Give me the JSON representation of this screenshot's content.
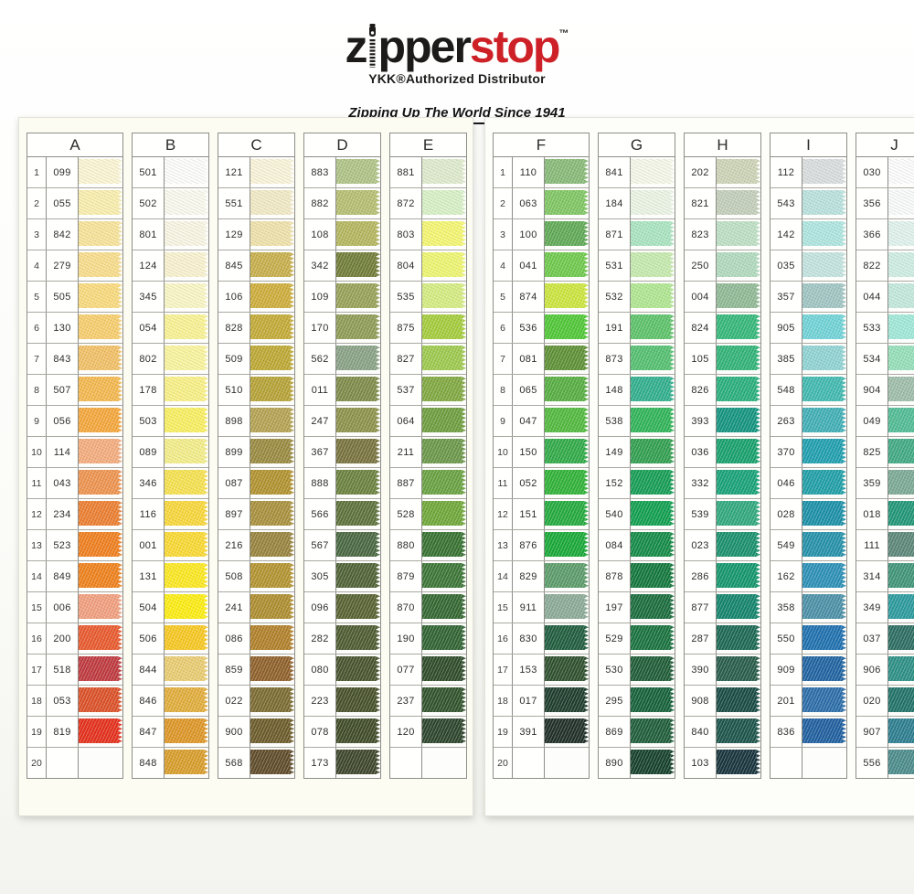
{
  "header": {
    "logo_black_z": "z",
    "logo_black_rest": "pper",
    "logo_red": "stop",
    "trademark": "™",
    "subtitle": "YKK®Authorized Distributor",
    "tagline": "Zipping Up The World Since 1941",
    "logo_red_color": "#cd2127"
  },
  "chart": {
    "row_numbers": [
      "1",
      "2",
      "3",
      "4",
      "5",
      "6",
      "7",
      "8",
      "9",
      "10",
      "11",
      "12",
      "13",
      "14",
      "15",
      "16",
      "17",
      "18",
      "19",
      "20"
    ],
    "columns": [
      {
        "letter": "A",
        "page": 0,
        "has_row_numbers": true,
        "swatches": [
          {
            "code": "099",
            "color": "#FCF6D4"
          },
          {
            "code": "055",
            "color": "#FAEFAE"
          },
          {
            "code": "842",
            "color": "#F8E49A"
          },
          {
            "code": "279",
            "color": "#F9DE8C"
          },
          {
            "code": "505",
            "color": "#FADB7E"
          },
          {
            "code": "130",
            "color": "#F8CF6E"
          },
          {
            "code": "843",
            "color": "#F3C167"
          },
          {
            "code": "507",
            "color": "#F5B94F"
          },
          {
            "code": "056",
            "color": "#F6A83C"
          },
          {
            "code": "114",
            "color": "#F5AD7E"
          },
          {
            "code": "043",
            "color": "#EF944F"
          },
          {
            "code": "234",
            "color": "#ED7F31"
          },
          {
            "code": "523",
            "color": "#F1801F"
          },
          {
            "code": "849",
            "color": "#F0821C"
          },
          {
            "code": "006",
            "color": "#F2A07F"
          },
          {
            "code": "200",
            "color": "#EA5A2E"
          },
          {
            "code": "518",
            "color": "#C03A3F"
          },
          {
            "code": "053",
            "color": "#DD5128"
          },
          {
            "code": "819",
            "color": "#E6301C"
          },
          {
            "code": "",
            "color": ""
          }
        ]
      },
      {
        "letter": "B",
        "page": 0,
        "has_row_numbers": false,
        "swatches": [
          {
            "code": "501",
            "color": "#FDFDFB"
          },
          {
            "code": "502",
            "color": "#FAFAEF"
          },
          {
            "code": "801",
            "color": "#F9F6E4"
          },
          {
            "code": "124",
            "color": "#F9F3D0"
          },
          {
            "code": "345",
            "color": "#FAF7C5"
          },
          {
            "code": "054",
            "color": "#FAF394"
          },
          {
            "code": "802",
            "color": "#FAF59E"
          },
          {
            "code": "178",
            "color": "#FAF187"
          },
          {
            "code": "503",
            "color": "#FAF062"
          },
          {
            "code": "089",
            "color": "#F4EE8A"
          },
          {
            "code": "346",
            "color": "#F7E250"
          },
          {
            "code": "116",
            "color": "#F9D83B"
          },
          {
            "code": "001",
            "color": "#FBDA33"
          },
          {
            "code": "131",
            "color": "#FDE921"
          },
          {
            "code": "504",
            "color": "#FDEE13"
          },
          {
            "code": "506",
            "color": "#F8C922"
          },
          {
            "code": "844",
            "color": "#EACD72"
          },
          {
            "code": "846",
            "color": "#E3AE3C"
          },
          {
            "code": "847",
            "color": "#DF9727"
          },
          {
            "code": "848",
            "color": "#D99E2B"
          }
        ]
      },
      {
        "letter": "C",
        "page": 0,
        "has_row_numbers": false,
        "swatches": [
          {
            "code": "121",
            "color": "#FAF4D9"
          },
          {
            "code": "551",
            "color": "#F2EAC6"
          },
          {
            "code": "129",
            "color": "#F0E2AB"
          },
          {
            "code": "845",
            "color": "#C8B04C"
          },
          {
            "code": "106",
            "color": "#CEAE3B"
          },
          {
            "code": "828",
            "color": "#C4AB37"
          },
          {
            "code": "509",
            "color": "#BEA934"
          },
          {
            "code": "510",
            "color": "#B7A336"
          },
          {
            "code": "898",
            "color": "#B5A352"
          },
          {
            "code": "899",
            "color": "#9A8B40"
          },
          {
            "code": "087",
            "color": "#B2932F"
          },
          {
            "code": "897",
            "color": "#A9913D"
          },
          {
            "code": "216",
            "color": "#99843E"
          },
          {
            "code": "508",
            "color": "#B49430"
          },
          {
            "code": "241",
            "color": "#AF8E2F"
          },
          {
            "code": "086",
            "color": "#B2812A"
          },
          {
            "code": "859",
            "color": "#90612B"
          },
          {
            "code": "022",
            "color": "#7C6C31"
          },
          {
            "code": "900",
            "color": "#6D5C2A"
          },
          {
            "code": "568",
            "color": "#604C2A"
          }
        ]
      },
      {
        "letter": "D",
        "page": 0,
        "has_row_numbers": false,
        "swatches": [
          {
            "code": "883",
            "color": "#B0C487"
          },
          {
            "code": "882",
            "color": "#B6BF71"
          },
          {
            "code": "108",
            "color": "#B5B75F"
          },
          {
            "code": "342",
            "color": "#717D38"
          },
          {
            "code": "109",
            "color": "#99A258"
          },
          {
            "code": "170",
            "color": "#8F9C55"
          },
          {
            "code": "562",
            "color": "#8AA286"
          },
          {
            "code": "011",
            "color": "#7E8C49"
          },
          {
            "code": "247",
            "color": "#8D934B"
          },
          {
            "code": "367",
            "color": "#79733E"
          },
          {
            "code": "888",
            "color": "#6B823E"
          },
          {
            "code": "566",
            "color": "#5E723B"
          },
          {
            "code": "567",
            "color": "#496841"
          },
          {
            "code": "305",
            "color": "#506336"
          },
          {
            "code": "096",
            "color": "#586331"
          },
          {
            "code": "282",
            "color": "#4E5C31"
          },
          {
            "code": "080",
            "color": "#48542E"
          },
          {
            "code": "223",
            "color": "#47512A"
          },
          {
            "code": "078",
            "color": "#404C28"
          },
          {
            "code": "173",
            "color": "#3E472C"
          }
        ]
      },
      {
        "letter": "E",
        "page": 0,
        "has_row_numbers": false,
        "swatches": [
          {
            "code": "881",
            "color": "#DFEBCD"
          },
          {
            "code": "872",
            "color": "#D8F1C6"
          },
          {
            "code": "803",
            "color": "#F5F772"
          },
          {
            "code": "804",
            "color": "#EFF671"
          },
          {
            "code": "535",
            "color": "#D5ED82"
          },
          {
            "code": "875",
            "color": "#A5CD3C"
          },
          {
            "code": "827",
            "color": "#9ECA4E"
          },
          {
            "code": "537",
            "color": "#81A941"
          },
          {
            "code": "064",
            "color": "#6F9E3F"
          },
          {
            "code": "211",
            "color": "#6B9849"
          },
          {
            "code": "887",
            "color": "#69A241"
          },
          {
            "code": "528",
            "color": "#70A839"
          },
          {
            "code": "880",
            "color": "#377231"
          },
          {
            "code": "879",
            "color": "#3C7636"
          },
          {
            "code": "870",
            "color": "#346831"
          },
          {
            "code": "190",
            "color": "#316433"
          },
          {
            "code": "077",
            "color": "#2F4C2A"
          },
          {
            "code": "237",
            "color": "#30532B"
          },
          {
            "code": "120",
            "color": "#2D452C"
          },
          {
            "code": "",
            "color": ""
          }
        ]
      },
      {
        "letter": "F",
        "page": 1,
        "has_row_numbers": true,
        "swatches": [
          {
            "code": "110",
            "color": "#88BB78"
          },
          {
            "code": "063",
            "color": "#80C763"
          },
          {
            "code": "100",
            "color": "#60AA56"
          },
          {
            "code": "041",
            "color": "#6FCA4C"
          },
          {
            "code": "874",
            "color": "#CDE63E"
          },
          {
            "code": "536",
            "color": "#50C836"
          },
          {
            "code": "081",
            "color": "#5E9135"
          },
          {
            "code": "065",
            "color": "#56AF41"
          },
          {
            "code": "047",
            "color": "#52BA3E"
          },
          {
            "code": "150",
            "color": "#31AB48"
          },
          {
            "code": "052",
            "color": "#30B337"
          },
          {
            "code": "151",
            "color": "#24AB3E"
          },
          {
            "code": "876",
            "color": "#19AA37"
          },
          {
            "code": "829",
            "color": "#5C9C6A"
          },
          {
            "code": "911",
            "color": "#8CAB97"
          },
          {
            "code": "830",
            "color": "#205D3E"
          },
          {
            "code": "153",
            "color": "#2F512E"
          },
          {
            "code": "017",
            "color": "#1E3D2C"
          },
          {
            "code": "391",
            "color": "#202F28"
          },
          {
            "code": "",
            "color": ""
          }
        ]
      },
      {
        "letter": "G",
        "page": 1,
        "has_row_numbers": false,
        "swatches": [
          {
            "code": "841",
            "color": "#F6F8EA"
          },
          {
            "code": "184",
            "color": "#EBF5E5"
          },
          {
            "code": "871",
            "color": "#AAE5C0"
          },
          {
            "code": "531",
            "color": "#C6EBAE"
          },
          {
            "code": "532",
            "color": "#B0E791"
          },
          {
            "code": "191",
            "color": "#5DC36A"
          },
          {
            "code": "873",
            "color": "#54C070"
          },
          {
            "code": "148",
            "color": "#31B08E"
          },
          {
            "code": "538",
            "color": "#30B558"
          },
          {
            "code": "149",
            "color": "#31A050"
          },
          {
            "code": "152",
            "color": "#169E55"
          },
          {
            "code": "540",
            "color": "#11A051"
          },
          {
            "code": "084",
            "color": "#148C47"
          },
          {
            "code": "878",
            "color": "#13783D"
          },
          {
            "code": "197",
            "color": "#1A6D3D"
          },
          {
            "code": "529",
            "color": "#19733F"
          },
          {
            "code": "530",
            "color": "#1F5D37"
          },
          {
            "code": "295",
            "color": "#15623A"
          },
          {
            "code": "869",
            "color": "#1F5E3A"
          },
          {
            "code": "890",
            "color": "#16422C"
          }
        ]
      },
      {
        "letter": "H",
        "page": 1,
        "has_row_numbers": false,
        "swatches": [
          {
            "code": "202",
            "color": "#CED4B7"
          },
          {
            "code": "821",
            "color": "#C4CFBB"
          },
          {
            "code": "823",
            "color": "#BEE0C4"
          },
          {
            "code": "250",
            "color": "#B1DBBE"
          },
          {
            "code": "004",
            "color": "#91BA96"
          },
          {
            "code": "824",
            "color": "#35B87A"
          },
          {
            "code": "105",
            "color": "#31B477"
          },
          {
            "code": "826",
            "color": "#29B07D"
          },
          {
            "code": "393",
            "color": "#149580"
          },
          {
            "code": "036",
            "color": "#18A26D"
          },
          {
            "code": "332",
            "color": "#18A378"
          },
          {
            "code": "539",
            "color": "#31A97F"
          },
          {
            "code": "023",
            "color": "#1A916D"
          },
          {
            "code": "286",
            "color": "#14976D"
          },
          {
            "code": "877",
            "color": "#14856D"
          },
          {
            "code": "287",
            "color": "#1C6954"
          },
          {
            "code": "390",
            "color": "#285D4B"
          },
          {
            "code": "908",
            "color": "#194C44"
          },
          {
            "code": "840",
            "color": "#1C554B"
          },
          {
            "code": "103",
            "color": "#18343D"
          }
        ]
      },
      {
        "letter": "I",
        "page": 1,
        "has_row_numbers": false,
        "swatches": [
          {
            "code": "112",
            "color": "#DADEDE"
          },
          {
            "code": "543",
            "color": "#BAE2DE"
          },
          {
            "code": "142",
            "color": "#B0E6E0"
          },
          {
            "code": "035",
            "color": "#C4E4E0"
          },
          {
            "code": "357",
            "color": "#A0C6C4"
          },
          {
            "code": "905",
            "color": "#71D4D8"
          },
          {
            "code": "385",
            "color": "#91D4D4"
          },
          {
            "code": "548",
            "color": "#41BAB0"
          },
          {
            "code": "263",
            "color": "#41B0B7"
          },
          {
            "code": "370",
            "color": "#20A0B0"
          },
          {
            "code": "046",
            "color": "#20A0A8"
          },
          {
            "code": "028",
            "color": "#1C91A8"
          },
          {
            "code": "549",
            "color": "#2592AA"
          },
          {
            "code": "162",
            "color": "#2C91B7"
          },
          {
            "code": "358",
            "color": "#4C91A8"
          },
          {
            "code": "550",
            "color": "#1F71B0"
          },
          {
            "code": "909",
            "color": "#2064A2"
          },
          {
            "code": "201",
            "color": "#2C6EAA"
          },
          {
            "code": "836",
            "color": "#2060A0"
          },
          {
            "code": "",
            "color": ""
          }
        ]
      },
      {
        "letter": "J",
        "page": 1,
        "has_row_numbers": false,
        "swatches": [
          {
            "code": "030",
            "color": "#FDFDFD"
          },
          {
            "code": "356",
            "color": "#F9FCFB"
          },
          {
            "code": "366",
            "color": "#E1F3ED"
          },
          {
            "code": "822",
            "color": "#CFEEE3"
          },
          {
            "code": "044",
            "color": "#C4E9DD"
          },
          {
            "code": "533",
            "color": "#A1E9D9"
          },
          {
            "code": "534",
            "color": "#96E0BA"
          },
          {
            "code": "904",
            "color": "#9FBEAA"
          },
          {
            "code": "049",
            "color": "#51BD95"
          },
          {
            "code": "825",
            "color": "#41AA84"
          },
          {
            "code": "359",
            "color": "#7CAA96"
          },
          {
            "code": "018",
            "color": "#219778"
          },
          {
            "code": "111",
            "color": "#5C8779"
          },
          {
            "code": "314",
            "color": "#409579"
          },
          {
            "code": "349",
            "color": "#2B9B9E"
          },
          {
            "code": "037",
            "color": "#2C6E63"
          },
          {
            "code": "906",
            "color": "#2C9086"
          },
          {
            "code": "020",
            "color": "#217369"
          },
          {
            "code": "907",
            "color": "#2C7E90"
          },
          {
            "code": "556",
            "color": "#4C8C8C"
          }
        ]
      }
    ]
  }
}
